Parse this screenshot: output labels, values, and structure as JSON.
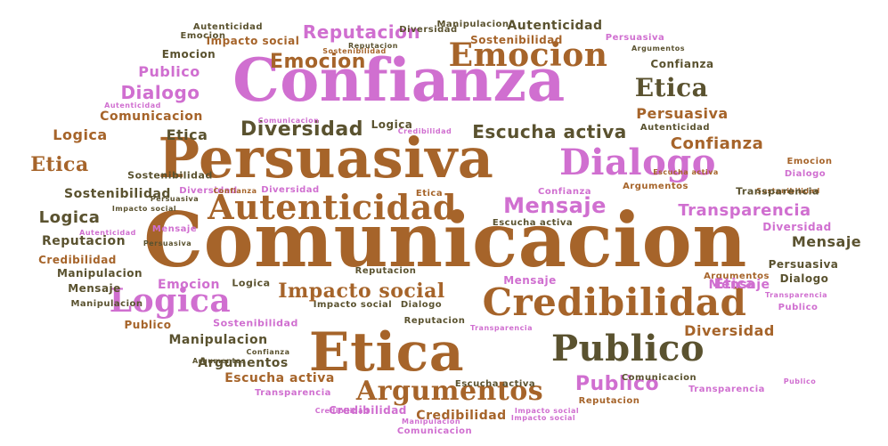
{
  "colors": {
    "brown": "#a6642a",
    "pink": "#d06fd0",
    "olive": "#5a522f",
    "background": "#ffffff"
  },
  "words": [
    "Comunicacion",
    "Confianza",
    "Persuasiva",
    "Etica",
    "Credibilidad",
    "Publico",
    "Dialogo",
    "Autenticidad",
    "Emocion",
    "Logica",
    "Argumentos",
    "Mensaje",
    "Impacto social",
    "Diversidad",
    "Escucha activa",
    "Transparencia",
    "Reputacion",
    "Etica",
    "Publico",
    "Emocion",
    "Dialogo",
    "Comunicacion",
    "Sostenibilidad",
    "Logica",
    "Etica",
    "Diversidad",
    "Confianza",
    "Persuasiva",
    "Reputacion",
    "Autenticidad",
    "Manipulacion",
    "Argumentos",
    "Credibilidad",
    "Mensaje",
    "Sostenibilidad",
    "Confianza",
    "Etica",
    "Logica",
    "Escucha activa",
    "Emocion",
    "Publico",
    "Dialogo",
    "Mensaje",
    "Impacto social",
    "Sostenibilidad",
    "Autenticidad",
    "Persuasiva",
    "Credibilidad",
    "Transparencia",
    "Publico",
    "Diversidad",
    "Emocion",
    "Credibilidad",
    "Argumentos",
    "Reputacion",
    "Confianza",
    "Persuasiva",
    "Manipulacion",
    "Autenticidad",
    "Sostenibilidad",
    "Impacto social",
    "Reputacion",
    "Argumentos",
    "Persuasiva",
    "Transparencia",
    "Mensaje",
    "Emocion",
    "Dialogo",
    "Manipulacion",
    "Autenticidad",
    "Argumentos",
    "Comunicacion",
    "Logica",
    "Comunicacion",
    "Escucha activa",
    "Confianza",
    "Diversidad",
    "Impacto social",
    "Manipulacion",
    "Sostenibilidad",
    "Escucha activa",
    "Reputacion",
    "Impacto social",
    "Manipulacion",
    "Transparencia",
    "Logica",
    "Dialogo",
    "Emocion",
    "Publico",
    "Escucha activa",
    "Comunicacion",
    "Reputacion",
    "Credibilidad",
    "Transparencia",
    "Etica",
    "Mensaje",
    "Diversidad",
    "Argumentos",
    "Confianza",
    "Sostenibilidad",
    "Publico",
    "Credibilidad",
    "Impacto social",
    "Autenticidad",
    "Mensaje",
    "Transparencia",
    "Persuasiva",
    "Etica",
    "Diversidad"
  ]
}
